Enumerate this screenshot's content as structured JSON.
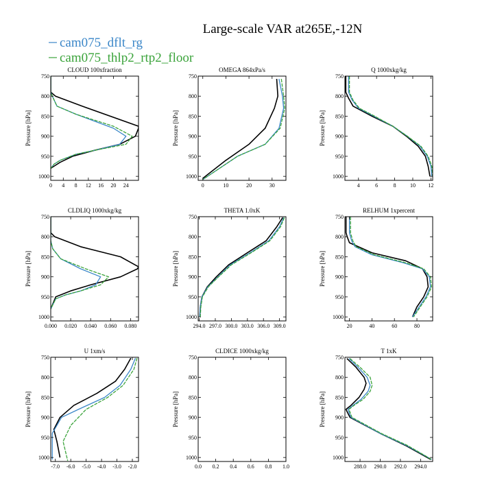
{
  "title": "Large-scale VAR at265E,-12N",
  "legend": [
    {
      "name": "cam075_dflt_rg",
      "color": "#3a86c8"
    },
    {
      "name": "cam075_thlp2_rtp2_floor",
      "color": "#3aa33a"
    }
  ],
  "chart_data": [
    {
      "type": "line",
      "title": "CLOUD  100xfraction",
      "ylabel": "Pressure [hPa]",
      "xlim": [
        0,
        28
      ],
      "ylim": [
        750,
        1010
      ],
      "y_reversed": true,
      "xticks": [
        0,
        4,
        8,
        12,
        16,
        20,
        24
      ],
      "xtick_labels": [
        "0",
        "4",
        "8",
        "12",
        "16",
        "20",
        "24"
      ],
      "yticks": [
        750,
        800,
        850,
        900,
        950,
        1000
      ],
      "ytick_labels": [
        "750",
        "800",
        "850",
        "900",
        "950",
        "1000"
      ],
      "series": [
        {
          "name": "black",
          "color": "#000000",
          "x": [
            0,
            0,
            0,
            1.5,
            10,
            28,
            28,
            27,
            22,
            14,
            7,
            3,
            1,
            0
          ],
          "y": [
            750,
            780,
            790,
            800,
            825,
            875,
            880,
            900,
            920,
            935,
            950,
            965,
            975,
            980
          ]
        },
        {
          "name": "cam075_dflt_rg",
          "color": "#3a86c8",
          "x": [
            0,
            0,
            0.5,
            2,
            8,
            20,
            24,
            22,
            14,
            8,
            3,
            1,
            0
          ],
          "y": [
            750,
            790,
            800,
            825,
            845,
            880,
            900,
            920,
            935,
            945,
            960,
            970,
            980
          ]
        },
        {
          "name": "cam075_thlp2_rtp2_floor",
          "color": "#3aa33a",
          "x": [
            0,
            0,
            0.5,
            2,
            8,
            20,
            26,
            24,
            14,
            8,
            3,
            1,
            0
          ],
          "y": [
            750,
            790,
            800,
            825,
            845,
            875,
            900,
            920,
            935,
            945,
            960,
            970,
            980
          ]
        }
      ]
    },
    {
      "type": "line",
      "title": "OMEGA  864xPa/s",
      "ylabel": "Pressure [hPa]",
      "xlim": [
        -2,
        36
      ],
      "ylim": [
        750,
        1010
      ],
      "y_reversed": true,
      "xticks": [
        0,
        10,
        20,
        30
      ],
      "xtick_labels": [
        "0",
        "10",
        "20",
        "30"
      ],
      "yticks": [
        750,
        800,
        850,
        900,
        950,
        1000
      ],
      "ytick_labels": [
        "750",
        "800",
        "850",
        "900",
        "950",
        "1000"
      ],
      "series": [
        {
          "name": "black",
          "color": "#000000",
          "x": [
            32,
            32.5,
            31,
            27,
            20,
            10,
            0
          ],
          "y": [
            757,
            800,
            830,
            880,
            920,
            960,
            1005
          ]
        },
        {
          "name": "cam075_dflt_rg",
          "color": "#3a86c8",
          "x": [
            33,
            34.5,
            35,
            33,
            27,
            15,
            0
          ],
          "y": [
            757,
            800,
            830,
            880,
            920,
            950,
            1008
          ]
        },
        {
          "name": "cam075_thlp2_rtp2_floor",
          "color": "#3aa33a",
          "x": [
            34,
            35,
            35.5,
            33.5,
            27,
            15,
            0
          ],
          "y": [
            757,
            800,
            830,
            880,
            920,
            950,
            1008
          ]
        }
      ]
    },
    {
      "type": "line",
      "title": "Q  1000xkg/kg",
      "ylabel": "Pressure [hPa]",
      "xlim": [
        2.5,
        12.2
      ],
      "ylim": [
        750,
        1010
      ],
      "y_reversed": true,
      "xticks": [
        4,
        6,
        8,
        10,
        12
      ],
      "xtick_labels": [
        "4",
        "6",
        "8",
        "10",
        "12"
      ],
      "yticks": [
        750,
        800,
        850,
        900,
        950,
        1000
      ],
      "ytick_labels": [
        "750",
        "800",
        "850",
        "900",
        "950",
        "1000"
      ],
      "series": [
        {
          "name": "black",
          "color": "#000000",
          "x": [
            2.6,
            2.6,
            2.9,
            3.4,
            5.5,
            7.8,
            9.3,
            10.6,
            11.4,
            11.7,
            11.9
          ],
          "y": [
            750,
            790,
            805,
            825,
            850,
            875,
            900,
            925,
            950,
            975,
            1000
          ]
        },
        {
          "name": "cam075_dflt_rg",
          "color": "#3a86c8",
          "x": [
            2.9,
            2.9,
            3.3,
            4,
            5.7,
            7.8,
            9.4,
            10.8,
            11.6,
            12,
            12.1
          ],
          "y": [
            750,
            790,
            810,
            830,
            850,
            875,
            900,
            925,
            950,
            975,
            1000
          ]
        },
        {
          "name": "cam075_thlp2_rtp2_floor",
          "color": "#3aa33a",
          "x": [
            3,
            3,
            3.4,
            4.1,
            5.8,
            7.8,
            9.4,
            10.9,
            11.7,
            12.1,
            12.2
          ],
          "y": [
            750,
            790,
            810,
            830,
            850,
            875,
            900,
            925,
            950,
            975,
            1000
          ]
        }
      ]
    },
    {
      "type": "line",
      "title": "CLDLIQ  1000xkg/kg",
      "ylabel": "Pressure [hPa]",
      "xlim": [
        0,
        0.088
      ],
      "ylim": [
        750,
        1010
      ],
      "y_reversed": true,
      "xticks": [
        0,
        0.02,
        0.04,
        0.06,
        0.08
      ],
      "xtick_labels": [
        "0.000",
        "0.020",
        "0.040",
        "0.060",
        "0.080"
      ],
      "yticks": [
        750,
        800,
        850,
        900,
        950,
        1000
      ],
      "ytick_labels": [
        "750",
        "800",
        "850",
        "900",
        "950",
        "1000"
      ],
      "series": [
        {
          "name": "black",
          "color": "#000000",
          "x": [
            0,
            0,
            0.004,
            0.03,
            0.07,
            0.088,
            0.087,
            0.07,
            0.04,
            0.02,
            0.005,
            0
          ],
          "y": [
            750,
            790,
            800,
            825,
            850,
            875,
            880,
            900,
            920,
            935,
            950,
            980
          ]
        },
        {
          "name": "cam075_dflt_rg",
          "color": "#3a86c8",
          "x": [
            0,
            0,
            0.002,
            0.01,
            0.03,
            0.05,
            0.045,
            0.03,
            0.015,
            0.005,
            0
          ],
          "y": [
            750,
            810,
            830,
            855,
            880,
            900,
            920,
            935,
            945,
            955,
            980
          ]
        },
        {
          "name": "cam075_thlp2_rtp2_floor",
          "color": "#3aa33a",
          "x": [
            0,
            0,
            0.002,
            0.01,
            0.035,
            0.058,
            0.05,
            0.03,
            0.015,
            0.005,
            0
          ],
          "y": [
            750,
            810,
            830,
            855,
            880,
            900,
            920,
            935,
            945,
            955,
            980
          ]
        }
      ]
    },
    {
      "type": "line",
      "title": "THETA  1.0xK",
      "ylabel": "Pressure [hPa]",
      "xlim": [
        293.8,
        310.2
      ],
      "ylim": [
        750,
        1010
      ],
      "y_reversed": true,
      "xticks": [
        294,
        297,
        300,
        303,
        306,
        309
      ],
      "xtick_labels": [
        "294.0",
        "297.0",
        "300.0",
        "303.0",
        "306.0",
        "309.0"
      ],
      "yticks": [
        750,
        800,
        850,
        900,
        950,
        1000
      ],
      "ytick_labels": [
        "750",
        "800",
        "850",
        "900",
        "950",
        "1000"
      ],
      "series": [
        {
          "name": "black",
          "color": "#000000",
          "x": [
            309.6,
            308.5,
            306.5,
            303,
            299.5,
            297.2,
            295.5,
            294.5,
            294.2,
            294.1
          ],
          "y": [
            752,
            775,
            810,
            840,
            870,
            900,
            925,
            950,
            975,
            1000
          ]
        },
        {
          "name": "cam075_dflt_rg",
          "color": "#3a86c8",
          "x": [
            309.8,
            309,
            307,
            303.5,
            299.8,
            297.5,
            295.6,
            294.5,
            294.2,
            294.1
          ],
          "y": [
            752,
            775,
            810,
            840,
            870,
            900,
            925,
            950,
            975,
            1000
          ]
        },
        {
          "name": "cam075_thlp2_rtp2_floor",
          "color": "#3aa33a",
          "x": [
            309.9,
            309.2,
            307.2,
            303.7,
            300,
            297.6,
            295.7,
            294.6,
            294.3,
            294.2
          ],
          "y": [
            752,
            775,
            810,
            840,
            870,
            900,
            925,
            950,
            975,
            1000
          ]
        }
      ]
    },
    {
      "type": "line",
      "title": "RELHUM  1xpercent",
      "ylabel": "Pressure [hPa]",
      "xlim": [
        16,
        94
      ],
      "ylim": [
        750,
        1010
      ],
      "y_reversed": true,
      "xticks": [
        20,
        40,
        60,
        80
      ],
      "xtick_labels": [
        "20",
        "40",
        "60",
        "80"
      ],
      "yticks": [
        750,
        800,
        850,
        900,
        950,
        1000
      ],
      "ytick_labels": [
        "750",
        "800",
        "850",
        "900",
        "950",
        "1000"
      ],
      "series": [
        {
          "name": "black",
          "color": "#000000",
          "x": [
            17,
            17,
            18,
            20,
            40,
            70,
            85,
            89,
            90,
            86,
            80,
            76
          ],
          "y": [
            750,
            790,
            800,
            815,
            840,
            860,
            880,
            900,
            925,
            950,
            975,
            1000
          ]
        },
        {
          "name": "cam075_dflt_rg",
          "color": "#3a86c8",
          "x": [
            20,
            20,
            22,
            25,
            40,
            68,
            85,
            91,
            92,
            88,
            82,
            76
          ],
          "y": [
            750,
            790,
            810,
            825,
            845,
            865,
            880,
            900,
            925,
            950,
            975,
            1000
          ]
        },
        {
          "name": "cam075_thlp2_rtp2_floor",
          "color": "#3aa33a",
          "x": [
            21,
            21,
            23,
            26,
            42,
            70,
            86,
            92,
            93,
            89,
            83,
            77
          ],
          "y": [
            750,
            790,
            810,
            825,
            845,
            865,
            880,
            900,
            925,
            950,
            975,
            1000
          ]
        }
      ]
    },
    {
      "type": "line",
      "title": "U  1xm/s",
      "ylabel": "Pressure [hPa]",
      "xlim": [
        -7.3,
        -1.6
      ],
      "ylim": [
        750,
        1010
      ],
      "y_reversed": true,
      "xticks": [
        -7,
        -6,
        -5,
        -4,
        -3,
        -2
      ],
      "xtick_labels": [
        "-7.0",
        "-6.0",
        "-5.0",
        "-4.0",
        "-3.0",
        "-2.0"
      ],
      "yticks": [
        750,
        800,
        850,
        900,
        950,
        1000
      ],
      "ytick_labels": [
        "750",
        "800",
        "850",
        "900",
        "950",
        "1000"
      ],
      "series": [
        {
          "name": "black",
          "color": "#000000",
          "x": [
            -2.1,
            -2.5,
            -3.1,
            -4.3,
            -5.8,
            -6.7,
            -7.1,
            -6.9,
            -6.7
          ],
          "y": [
            752,
            780,
            810,
            840,
            870,
            900,
            930,
            960,
            1000
          ]
        },
        {
          "name": "cam075_dflt_rg",
          "color": "#3a86c8",
          "x": [
            -1.8,
            -2.1,
            -2.8,
            -3.8,
            -5.5,
            -6.6,
            -7.2,
            -7.2
          ],
          "y": [
            752,
            780,
            820,
            850,
            880,
            900,
            940,
            1005
          ]
        },
        {
          "name": "cam075_thlp2_rtp2_floor",
          "color": "#3aa33a",
          "x": [
            -1.7,
            -1.9,
            -2.6,
            -3.6,
            -5,
            -6,
            -6.5,
            -6.2
          ],
          "y": [
            752,
            780,
            820,
            850,
            880,
            920,
            960,
            1008
          ]
        }
      ]
    },
    {
      "type": "line",
      "title": "CLDICE  1000xkg/kg",
      "ylabel": "Pressure [hPa]",
      "xlim": [
        0,
        1
      ],
      "ylim": [
        750,
        1010
      ],
      "y_reversed": true,
      "xticks": [
        0,
        0.2,
        0.4,
        0.6,
        0.8,
        1.0
      ],
      "xtick_labels": [
        "0.0",
        "0.2",
        "0.4",
        "0.6",
        "0.8",
        "1.0"
      ],
      "yticks": [
        750,
        800,
        850,
        900,
        950,
        1000
      ],
      "ytick_labels": [
        "750",
        "800",
        "850",
        "900",
        "950",
        "1000"
      ],
      "series": []
    },
    {
      "type": "line",
      "title": "T  1xK",
      "ylabel": "Pressure [hPa]",
      "xlim": [
        286.5,
        295.2
      ],
      "ylim": [
        750,
        1010
      ],
      "y_reversed": true,
      "xticks": [
        288,
        290,
        292,
        294
      ],
      "xtick_labels": [
        "288.0",
        "290.0",
        "292.0",
        "294.0"
      ],
      "yticks": [
        750,
        800,
        850,
        900,
        950,
        1000
      ],
      "ytick_labels": [
        "750",
        "800",
        "850",
        "900",
        "950",
        "1000"
      ],
      "series": [
        {
          "name": "black",
          "color": "#000000",
          "x": [
            286.7,
            287.6,
            288.4,
            288.6,
            288.4,
            287.9,
            287.1,
            286.6,
            287,
            290,
            292.5,
            295
          ],
          "y": [
            753,
            775,
            800,
            815,
            830,
            850,
            870,
            880,
            900,
            940,
            970,
            1005
          ]
        },
        {
          "name": "cam075_dflt_rg",
          "color": "#3a86c8",
          "x": [
            286.9,
            287.8,
            288.7,
            289,
            288.8,
            288.1,
            287.3,
            286.8,
            287.1,
            290,
            292.6,
            295.1
          ],
          "y": [
            753,
            775,
            800,
            820,
            835,
            855,
            870,
            880,
            900,
            940,
            970,
            1005
          ]
        },
        {
          "name": "cam075_thlp2_rtp2_floor",
          "color": "#3aa33a",
          "x": [
            287,
            288,
            289,
            289.2,
            289,
            288.3,
            287.4,
            286.9,
            287.2,
            290.1,
            292.7,
            295.1
          ],
          "y": [
            753,
            775,
            800,
            820,
            835,
            855,
            870,
            880,
            900,
            940,
            970,
            1005
          ]
        }
      ]
    }
  ]
}
